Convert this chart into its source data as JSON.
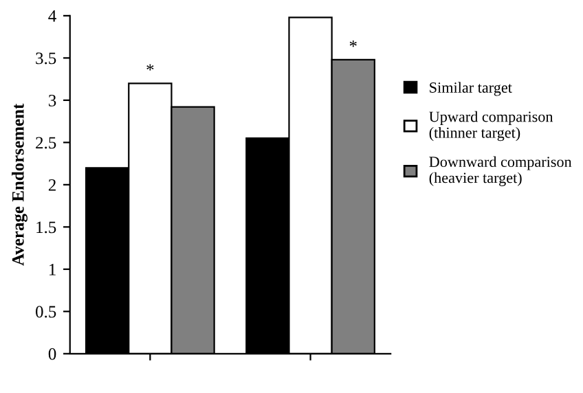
{
  "chart_data": {
    "type": "bar",
    "ylabel": "Average Endorsement",
    "categories": [
      null,
      null
    ],
    "series": [
      {
        "name": "Similar target",
        "color": "#000000",
        "values": [
          2.2,
          2.55
        ]
      },
      {
        "name": "Upward comparison\n(thinner target)",
        "color": "#ffffff",
        "values": [
          3.2,
          3.98
        ]
      },
      {
        "name": "Downward comparison\n(heavier target)",
        "color": "#808080",
        "values": [
          2.92,
          3.48
        ]
      }
    ],
    "ylim": [
      0,
      4
    ],
    "yticks": [
      0,
      0.5,
      1,
      1.5,
      2,
      2.5,
      3,
      3.5,
      4
    ],
    "annotations": [
      "*",
      "*"
    ],
    "legend": "right",
    "grid": false
  }
}
